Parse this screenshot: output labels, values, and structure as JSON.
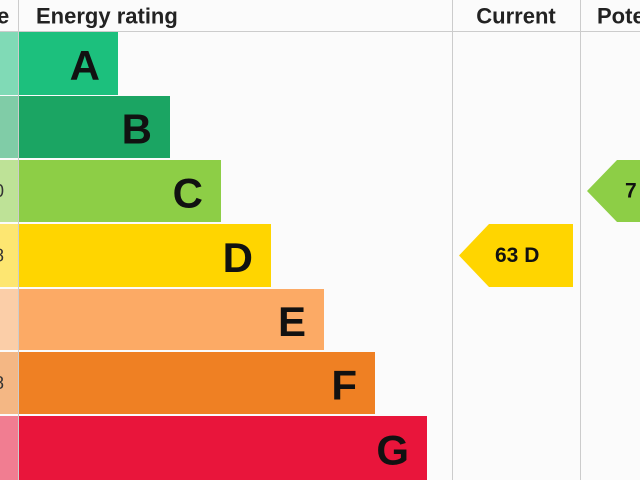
{
  "header": {
    "score": "e",
    "rating": "Energy rating",
    "current": "Current",
    "potential": "Pote"
  },
  "bands": [
    {
      "letter": "A",
      "color": "#1cc07d"
    },
    {
      "letter": "B",
      "color": "#1ba563"
    },
    {
      "letter": "C",
      "color": "#8dce46",
      "score": "0"
    },
    {
      "letter": "D",
      "color": "#ffd500",
      "score": "8"
    },
    {
      "letter": "E",
      "color": "#fcaa65",
      "score": "-"
    },
    {
      "letter": "F",
      "color": "#ef8023",
      "score": "8"
    },
    {
      "letter": "G",
      "color": "#e9153b"
    }
  ],
  "current": {
    "label": "63  D",
    "color": "#ffd500"
  },
  "potential": {
    "label": "7",
    "color": "#8dce46"
  }
}
